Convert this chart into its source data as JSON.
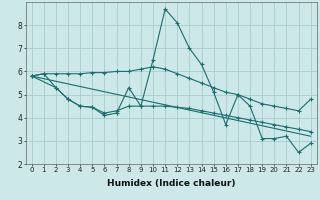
{
  "xlabel": "Humidex (Indice chaleur)",
  "bg_color": "#cce8e8",
  "grid_color": "#aacccc",
  "line_color": "#1a6e6e",
  "xlim": [
    -0.5,
    23.5
  ],
  "ylim": [
    2,
    9
  ],
  "yticks": [
    2,
    3,
    4,
    5,
    6,
    7,
    8
  ],
  "xticks": [
    0,
    1,
    2,
    3,
    4,
    5,
    6,
    7,
    8,
    9,
    10,
    11,
    12,
    13,
    14,
    15,
    16,
    17,
    18,
    19,
    20,
    21,
    22,
    23
  ],
  "series1": {
    "points": [
      [
        0,
        5.8
      ],
      [
        1,
        5.9
      ],
      [
        2,
        5.3
      ],
      [
        3,
        4.8
      ],
      [
        4,
        4.5
      ],
      [
        5,
        4.45
      ],
      [
        6,
        4.1
      ],
      [
        7,
        4.2
      ],
      [
        8,
        5.3
      ],
      [
        9,
        4.5
      ],
      [
        10,
        6.5
      ],
      [
        11,
        8.7
      ],
      [
        12,
        8.1
      ],
      [
        13,
        7.0
      ],
      [
        14,
        6.3
      ],
      [
        15,
        5.1
      ],
      [
        16,
        3.7
      ],
      [
        17,
        5.0
      ],
      [
        18,
        4.5
      ],
      [
        19,
        3.1
      ],
      [
        20,
        3.1
      ],
      [
        21,
        3.2
      ],
      [
        22,
        2.5
      ],
      [
        23,
        2.9
      ]
    ]
  },
  "series2": {
    "points": [
      [
        0,
        5.8
      ],
      [
        1,
        5.9
      ],
      [
        2,
        5.9
      ],
      [
        3,
        5.9
      ],
      [
        4,
        5.9
      ],
      [
        5,
        5.95
      ],
      [
        6,
        5.95
      ],
      [
        7,
        6.0
      ],
      [
        8,
        6.0
      ],
      [
        9,
        6.1
      ],
      [
        10,
        6.2
      ],
      [
        11,
        6.1
      ],
      [
        12,
        5.9
      ],
      [
        13,
        5.7
      ],
      [
        14,
        5.5
      ],
      [
        15,
        5.3
      ],
      [
        16,
        5.1
      ],
      [
        17,
        5.0
      ],
      [
        18,
        4.8
      ],
      [
        19,
        4.6
      ],
      [
        20,
        4.5
      ],
      [
        21,
        4.4
      ],
      [
        22,
        4.3
      ],
      [
        23,
        4.8
      ]
    ]
  },
  "series3": {
    "points": [
      [
        0,
        5.8
      ],
      [
        2,
        5.3
      ],
      [
        3,
        4.8
      ],
      [
        4,
        4.5
      ],
      [
        5,
        4.45
      ],
      [
        6,
        4.2
      ],
      [
        7,
        4.3
      ],
      [
        8,
        4.5
      ],
      [
        9,
        4.5
      ],
      [
        10,
        4.5
      ],
      [
        11,
        4.5
      ],
      [
        12,
        4.45
      ],
      [
        13,
        4.4
      ],
      [
        14,
        4.3
      ],
      [
        15,
        4.2
      ],
      [
        16,
        4.1
      ],
      [
        17,
        4.0
      ],
      [
        18,
        3.9
      ],
      [
        19,
        3.8
      ],
      [
        20,
        3.7
      ],
      [
        21,
        3.6
      ],
      [
        22,
        3.5
      ],
      [
        23,
        3.4
      ]
    ]
  },
  "series4": {
    "points": [
      [
        0,
        5.8
      ],
      [
        23,
        3.2
      ]
    ]
  }
}
